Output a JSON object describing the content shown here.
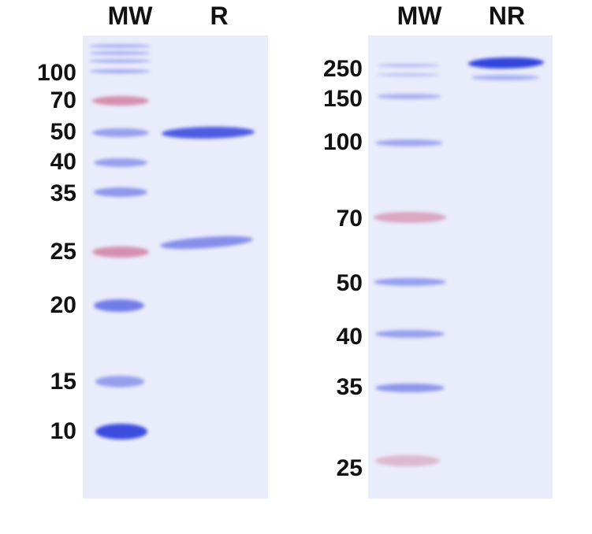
{
  "left_gel": {
    "lanes": [
      "MW",
      "R"
    ],
    "markers": [
      "100",
      "70",
      "50",
      "40",
      "35",
      "25",
      "20",
      "15",
      "10"
    ]
  },
  "right_gel": {
    "lanes": [
      "MW",
      "NR"
    ],
    "markers": [
      "250",
      "150",
      "100",
      "70",
      "50",
      "40",
      "35",
      "25"
    ]
  },
  "colors": {
    "gel_background": "#e9ecfb",
    "stain_blue": "#3344dd",
    "ladder_pink": "#d07a9a"
  }
}
